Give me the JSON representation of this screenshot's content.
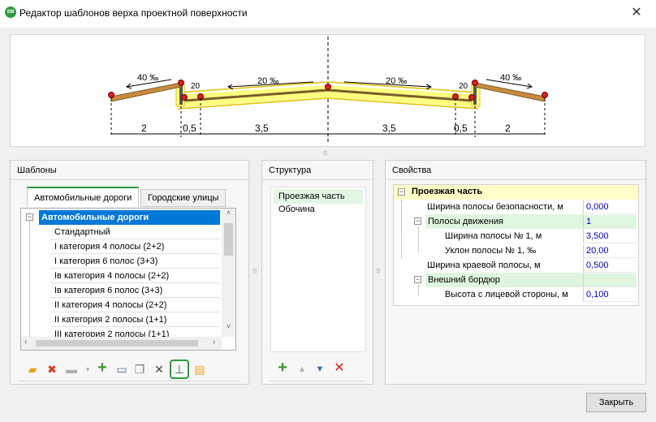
{
  "window": {
    "title": "Редактор шаблонов верха проектной поверхности",
    "icon_text": "SM",
    "close_glyph": "✕"
  },
  "drawing": {
    "slopes": [
      "40 ‰",
      "20 ‰",
      "20 ‰",
      "40 ‰"
    ],
    "small_labels": [
      "20",
      "20"
    ],
    "dims": [
      "2",
      "0,5",
      "3,5",
      "3,5",
      "0,5",
      "2"
    ]
  },
  "templates": {
    "title": "Шаблоны",
    "tabs": [
      "Автомобильные дороги",
      "Городские улицы"
    ],
    "root": "Автомобильные дороги",
    "items": [
      "Стандартный",
      "I категория 4 полосы (2+2)",
      "I категория 6 полос (3+3)",
      "Iв категория 4 полосы (2+2)",
      "Iв категория 6 полос (3+3)",
      "II категория 4 полосы (2+2)",
      "II категория 2 полосы (1+1)",
      "III категория 2 полосы (1+1)"
    ]
  },
  "structure": {
    "title": "Структура",
    "items": [
      "Проезжая часть",
      "Обочина"
    ]
  },
  "properties": {
    "title": "Свойства",
    "header": "Проезжая часть",
    "rows": {
      "safety_width": {
        "name": "Ширина полосы безопасности, м",
        "value": "0,000"
      },
      "lanes": {
        "name": "Полосы движения",
        "value": "1"
      },
      "lane_width": {
        "name": "Ширина полосы № 1, м",
        "value": "3,500"
      },
      "lane_slope": {
        "name": "Уклон полосы № 1, ‰",
        "value": "20,00"
      },
      "edge_width": {
        "name": "Ширина краевой полосы, м",
        "value": "0,500"
      },
      "curb": {
        "name": "Внешний бордюр",
        "value": ""
      },
      "curb_height": {
        "name": "Высота с лицевой стороны, м",
        "value": "0,100"
      }
    }
  },
  "footer": {
    "close_label": "Закрыть"
  },
  "colors": {
    "accent": "#2e9a3c",
    "selection": "#0078d7",
    "value_text": "#0000c0",
    "header_bg": "#ffffc8",
    "group_bg": "#dff5df"
  }
}
